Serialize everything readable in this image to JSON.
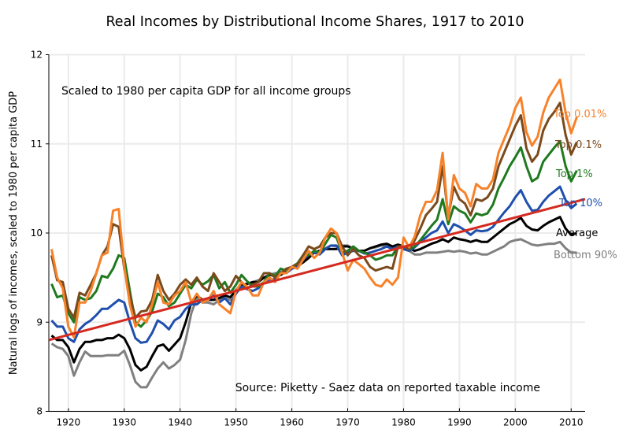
{
  "chart_data": {
    "type": "line",
    "title": "Real Incomes by Distributional Income Shares, 1917 to 2010",
    "xlabel": "",
    "ylabel": "Natural logs of incomes, scaled to 1980 per capita GDP",
    "xlim": [
      1916.5,
      2012.5
    ],
    "ylim": [
      8,
      12
    ],
    "x_ticks": [
      1920,
      1930,
      1940,
      1950,
      1960,
      1970,
      1980,
      1990,
      2000,
      2010
    ],
    "y_ticks": [
      8,
      9,
      10,
      11,
      12
    ],
    "grid": true,
    "annotations": [
      {
        "text": "Scaled to 1980 per capita GDP for all income groups",
        "position": "top-left"
      },
      {
        "text": "Source:  Piketty - Saez data on reported taxable income",
        "position": "bottom-right"
      }
    ],
    "start_year": 1917,
    "series": [
      {
        "name": "Top 0.01%",
        "color": "#f7822a",
        "values": [
          9.82,
          9.5,
          9.38,
          8.95,
          8.83,
          9.22,
          9.22,
          9.35,
          9.55,
          9.75,
          9.78,
          10.25,
          10.27,
          9.62,
          9.2,
          8.95,
          9.05,
          9.0,
          9.2,
          9.45,
          9.22,
          9.2,
          9.3,
          9.35,
          9.45,
          9.22,
          9.32,
          9.22,
          9.25,
          9.35,
          9.2,
          9.15,
          9.1,
          9.35,
          9.45,
          9.4,
          9.3,
          9.3,
          9.45,
          9.5,
          9.45,
          9.55,
          9.55,
          9.62,
          9.6,
          9.7,
          9.8,
          9.72,
          9.78,
          9.95,
          10.05,
          10.0,
          9.78,
          9.58,
          9.7,
          9.65,
          9.6,
          9.5,
          9.42,
          9.4,
          9.48,
          9.42,
          9.5,
          9.95,
          9.84,
          9.96,
          10.2,
          10.35,
          10.35,
          10.48,
          10.9,
          10.15,
          10.65,
          10.5,
          10.45,
          10.3,
          10.55,
          10.5,
          10.5,
          10.6,
          10.9,
          11.05,
          11.2,
          11.4,
          11.52,
          11.13,
          10.98,
          11.08,
          11.35,
          11.52,
          11.62,
          11.72,
          11.35,
          11.12,
          11.3
        ]
      },
      {
        "name": "Top 0.1%",
        "color": "#7a4a1c",
        "values": [
          9.75,
          9.47,
          9.45,
          9.15,
          9.05,
          9.33,
          9.3,
          9.42,
          9.55,
          9.75,
          9.85,
          10.1,
          10.07,
          9.6,
          9.3,
          9.05,
          9.12,
          9.13,
          9.25,
          9.53,
          9.35,
          9.25,
          9.32,
          9.42,
          9.48,
          9.42,
          9.5,
          9.4,
          9.35,
          9.55,
          9.45,
          9.35,
          9.4,
          9.52,
          9.45,
          9.38,
          9.42,
          9.45,
          9.55,
          9.55,
          9.5,
          9.55,
          9.6,
          9.62,
          9.65,
          9.75,
          9.85,
          9.82,
          9.85,
          9.95,
          10.0,
          10.0,
          9.85,
          9.75,
          9.82,
          9.75,
          9.72,
          9.62,
          9.58,
          9.6,
          9.62,
          9.6,
          9.85,
          9.85,
          9.82,
          9.92,
          10.05,
          10.2,
          10.27,
          10.35,
          10.75,
          10.18,
          10.52,
          10.38,
          10.33,
          10.2,
          10.38,
          10.36,
          10.4,
          10.5,
          10.75,
          10.9,
          11.05,
          11.2,
          11.32,
          10.95,
          10.8,
          10.88,
          11.15,
          11.28,
          11.36,
          11.46,
          11.1,
          10.88,
          11.02
        ]
      },
      {
        "name": "Top 1%",
        "color": "#1f7a1f",
        "values": [
          9.43,
          9.28,
          9.3,
          9.1,
          9.0,
          9.28,
          9.25,
          9.27,
          9.35,
          9.52,
          9.5,
          9.6,
          9.75,
          9.72,
          9.35,
          9.0,
          8.95,
          9.02,
          9.12,
          9.32,
          9.28,
          9.18,
          9.22,
          9.32,
          9.42,
          9.38,
          9.48,
          9.42,
          9.46,
          9.53,
          9.38,
          9.45,
          9.33,
          9.42,
          9.53,
          9.46,
          9.4,
          9.4,
          9.45,
          9.55,
          9.52,
          9.6,
          9.58,
          9.62,
          9.66,
          9.75,
          9.75,
          9.8,
          9.78,
          9.88,
          9.98,
          9.95,
          9.78,
          9.8,
          9.85,
          9.8,
          9.78,
          9.75,
          9.7,
          9.72,
          9.75,
          9.75,
          9.85,
          9.85,
          9.82,
          9.85,
          9.92,
          10.0,
          10.08,
          10.15,
          10.38,
          10.1,
          10.3,
          10.25,
          10.22,
          10.12,
          10.22,
          10.2,
          10.22,
          10.32,
          10.5,
          10.62,
          10.75,
          10.85,
          10.96,
          10.75,
          10.58,
          10.62,
          10.8,
          10.88,
          10.96,
          11.03,
          10.75,
          10.58,
          10.7
        ]
      },
      {
        "name": "Top 10%",
        "color": "#1f4fad",
        "values": [
          9.02,
          8.95,
          8.95,
          8.82,
          8.78,
          8.92,
          8.98,
          9.02,
          9.08,
          9.15,
          9.15,
          9.2,
          9.25,
          9.22,
          9.0,
          8.82,
          8.77,
          8.78,
          8.88,
          9.02,
          8.98,
          8.92,
          9.02,
          9.06,
          9.15,
          9.2,
          9.2,
          9.25,
          9.25,
          9.3,
          9.22,
          9.27,
          9.2,
          9.32,
          9.4,
          9.37,
          9.35,
          9.38,
          9.45,
          9.48,
          9.48,
          9.56,
          9.55,
          9.6,
          9.62,
          9.7,
          9.76,
          9.78,
          9.76,
          9.82,
          9.86,
          9.86,
          9.75,
          9.78,
          9.8,
          9.8,
          9.77,
          9.78,
          9.8,
          9.82,
          9.85,
          9.82,
          9.85,
          9.82,
          9.8,
          9.84,
          9.9,
          9.95,
          10.0,
          10.03,
          10.13,
          10.0,
          10.1,
          10.07,
          10.03,
          9.98,
          10.03,
          10.02,
          10.03,
          10.07,
          10.15,
          10.23,
          10.3,
          10.4,
          10.48,
          10.35,
          10.25,
          10.26,
          10.35,
          10.42,
          10.47,
          10.52,
          10.37,
          10.28,
          10.33
        ]
      },
      {
        "name": "Average",
        "color": "#000000",
        "values": [
          8.85,
          8.8,
          8.8,
          8.72,
          8.55,
          8.7,
          8.78,
          8.78,
          8.8,
          8.8,
          8.82,
          8.82,
          8.86,
          8.82,
          8.7,
          8.52,
          8.46,
          8.5,
          8.62,
          8.73,
          8.75,
          8.68,
          8.75,
          8.82,
          9.0,
          9.22,
          9.3,
          9.25,
          9.25,
          9.25,
          9.27,
          9.3,
          9.28,
          9.36,
          9.42,
          9.43,
          9.45,
          9.45,
          9.5,
          9.53,
          9.52,
          9.53,
          9.57,
          9.6,
          9.63,
          9.67,
          9.72,
          9.78,
          9.8,
          9.82,
          9.82,
          9.82,
          9.85,
          9.85,
          9.83,
          9.8,
          9.8,
          9.83,
          9.85,
          9.87,
          9.88,
          9.85,
          9.87,
          9.85,
          9.83,
          9.8,
          9.82,
          9.85,
          9.88,
          9.9,
          9.93,
          9.9,
          9.95,
          9.93,
          9.92,
          9.9,
          9.92,
          9.9,
          9.9,
          9.95,
          10.0,
          10.05,
          10.1,
          10.13,
          10.17,
          10.08,
          10.04,
          10.03,
          10.08,
          10.12,
          10.15,
          10.18,
          10.05,
          9.98,
          10.0
        ]
      },
      {
        "name": "Bottom 90%",
        "color": "#808080",
        "values": [
          8.76,
          8.72,
          8.7,
          8.62,
          8.4,
          8.55,
          8.67,
          8.62,
          8.62,
          8.62,
          8.63,
          8.63,
          8.63,
          8.68,
          8.52,
          8.33,
          8.27,
          8.27,
          8.38,
          8.48,
          8.55,
          8.48,
          8.52,
          8.58,
          8.8,
          9.1,
          9.27,
          9.22,
          9.22,
          9.2,
          9.25,
          9.27,
          9.25,
          9.35,
          9.42,
          9.43,
          9.45,
          9.47,
          9.5,
          9.53,
          9.55,
          9.55,
          9.58,
          9.62,
          9.65,
          9.7,
          9.75,
          9.78,
          9.8,
          9.83,
          9.86,
          9.85,
          9.86,
          9.86,
          9.82,
          9.8,
          9.8,
          9.83,
          9.84,
          9.86,
          9.85,
          9.83,
          9.85,
          9.82,
          9.8,
          9.76,
          9.76,
          9.78,
          9.78,
          9.78,
          9.79,
          9.8,
          9.79,
          9.8,
          9.79,
          9.77,
          9.78,
          9.76,
          9.76,
          9.79,
          9.82,
          9.85,
          9.9,
          9.92,
          9.93,
          9.9,
          9.87,
          9.86,
          9.87,
          9.88,
          9.88,
          9.9,
          9.83,
          9.78,
          9.78
        ]
      }
    ],
    "trend_line": {
      "name": "Trend",
      "color": "#d42a20",
      "x": [
        1916.5,
        2012.5
      ],
      "values": [
        8.8,
        10.38
      ]
    }
  }
}
